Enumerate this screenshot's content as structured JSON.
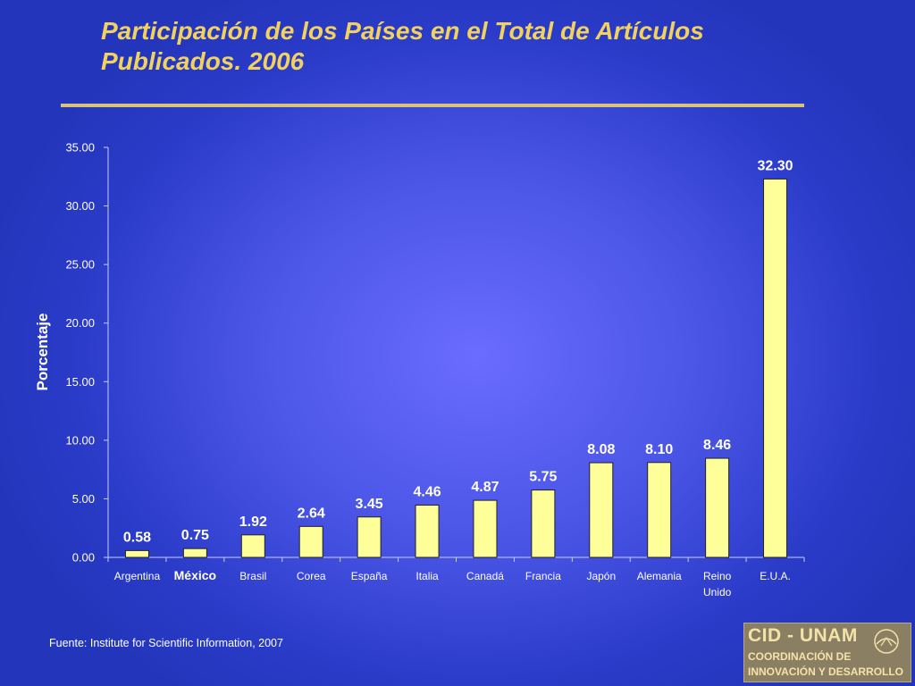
{
  "slide": {
    "title": "Participación de los Países en el Total de Artículos Publicados.  2006",
    "source": "Fuente: Institute for Scientific Information, 2007",
    "logo_text": [
      "CID - UNAM",
      "COORDINACIÓN DE",
      "INNOVACIÓN Y DESARROLLO"
    ]
  },
  "colors": {
    "bar_fill": "#ffff99",
    "bar_stroke": "#222222",
    "title": "#f2d25e",
    "label": "#ffffff"
  },
  "chart_data": {
    "type": "bar",
    "categories": [
      "Argentina",
      "México",
      "Brasil",
      "Corea",
      "España",
      "Italia",
      "Canadá",
      "Francia",
      "Japón",
      "Alemania",
      "Reino Unido",
      "E.U.A."
    ],
    "category_lines": [
      [
        "Argentina"
      ],
      [
        "México"
      ],
      [
        "Brasil"
      ],
      [
        "Corea"
      ],
      [
        "España"
      ],
      [
        "Italia"
      ],
      [
        "Canadá"
      ],
      [
        "Francia"
      ],
      [
        "Japón"
      ],
      [
        "Alemania"
      ],
      [
        "Reino",
        "Unido"
      ],
      [
        "E.U.A."
      ]
    ],
    "emphasized_category": "México",
    "values": [
      0.58,
      0.75,
      1.92,
      2.64,
      3.45,
      4.46,
      4.87,
      5.75,
      8.08,
      8.1,
      8.46,
      32.3
    ],
    "data_labels": [
      "0.58",
      "0.75",
      "1.92",
      "2.64",
      "3.45",
      "4.46",
      "4.87",
      "5.75",
      "8.08",
      "8.10",
      "8.46",
      "32.30"
    ],
    "ylabel": "Porcentaje",
    "xlabel": "",
    "ylim": [
      0,
      35
    ],
    "yticks": [
      "0.00",
      "5.00",
      "10.00",
      "15.00",
      "20.00",
      "25.00",
      "30.00",
      "35.00"
    ],
    "grid": false,
    "legend": "none"
  }
}
